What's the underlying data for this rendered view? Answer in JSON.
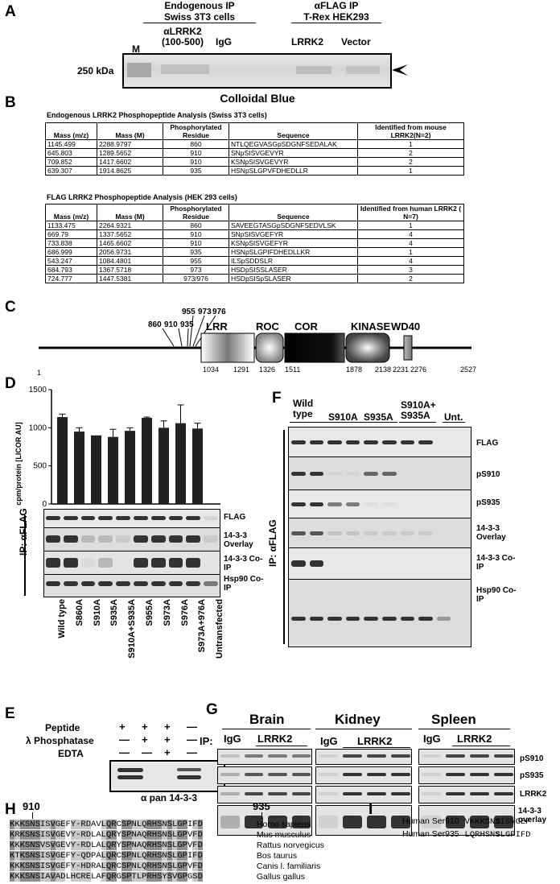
{
  "panel_a": {
    "letter": "A",
    "group1_title_1": "Endogenous IP",
    "group1_title_2": "Swiss 3T3 cells",
    "group2_title_1": "αFLAG IP",
    "group2_title_2": "T-Rex HEK293",
    "lane_m": "M",
    "lane_alrrk2_1": "αLRRK2",
    "lane_alrrk2_2": "(100-500)",
    "lane_igg": "IgG",
    "lane_lrrk2": "LRRK2",
    "lane_vector": "Vector",
    "marker": "250 kDa",
    "caption": "Colloidal Blue"
  },
  "panel_b": {
    "letter": "B",
    "table1_title": "Endogenous LRRK2 Phosphopeptide Analysis (Swiss 3T3 cells)",
    "table1_headers": [
      "Mass (m/z)",
      "Mass (M)",
      "Phosphorylated Residue",
      "Sequence",
      "Identified from mouse LRRK2(N=2)"
    ],
    "table1_rows": [
      [
        "1145.499",
        "2288.9797",
        "860",
        "NTLQEGVASGpSDGNFSEDALAK",
        "1"
      ],
      [
        "645.803",
        "1289.5652",
        "910",
        "SNpSISVGEVYR",
        "2"
      ],
      [
        "709.852",
        "1417.6602",
        "910",
        "KSNpSISVGEVYR",
        "2"
      ],
      [
        "639.307",
        "1914.8625",
        "935",
        "HSNpSLGPVFDHEDLLR",
        "1"
      ]
    ],
    "table2_title": "FLAG LRRK2 Phosphopeptide Analysis (HEK 293 cells)",
    "table2_headers": [
      "Mass (m/z)",
      "Mass (M)",
      "Phosphorylated Residue",
      "Sequence",
      "Identified from human LRRK2 ( N=7)"
    ],
    "table2_rows": [
      [
        "1133.475",
        "2264.9321",
        "860",
        "SAVEEGTASGpSDGNFSEDVLSK",
        "1"
      ],
      [
        "669.79",
        "1337.5652",
        "910",
        "SNpSISVGEFYR",
        "4"
      ],
      [
        "733.838",
        "1465.6602",
        "910",
        "KSNpSISVGEFYR",
        "4"
      ],
      [
        "686.999",
        "2056.9731",
        "935",
        "HSNpSLGPIFDHEDLLKR",
        "1"
      ],
      [
        "543.247",
        "1084.4801",
        "955",
        "ILSpSDDSLR",
        "4"
      ],
      [
        "684.793",
        "1367.5718",
        "973",
        "HSDpSISSLASER",
        "3"
      ],
      [
        "724.777",
        "1447.5381",
        "973/976",
        "HSDpSISpSLASER",
        "2"
      ]
    ]
  },
  "panel_c": {
    "letter": "C",
    "sites": [
      "860",
      "910",
      "935",
      "955",
      "973",
      "976"
    ],
    "domains": [
      "LRR",
      "ROC",
      "COR",
      "KINASE",
      "WD40"
    ],
    "positions": [
      "1",
      "1034",
      "1291",
      "1326",
      "1511",
      "1878",
      "2138",
      "2231",
      "2276",
      "2527"
    ]
  },
  "panel_d": {
    "letter": "D",
    "ylabel": "cpm/protein [LICOR AU]",
    "yticks": [
      "0",
      "500",
      "1000",
      "1500"
    ],
    "row_labels": [
      "FLAG",
      "14-3-3 Overlay",
      "14-3-3 Co-IP",
      "Hsp90 Co-IP"
    ],
    "ip_label": "IP: αFLAG",
    "lanes": [
      "Wild type",
      "S860A",
      "S910A",
      "S935A",
      "S910A+S935A",
      "S955A",
      "S973A",
      "S976A",
      "S973A+976A",
      "Untransfected"
    ]
  },
  "chart_data": {
    "type": "bar",
    "categories": [
      "Wild type",
      "S860A",
      "S910A",
      "S935A",
      "S910A+S935A",
      "S955A",
      "S973A",
      "S976A",
      "S973A+976A"
    ],
    "values": [
      1140,
      950,
      900,
      880,
      960,
      1130,
      1000,
      1060,
      990
    ],
    "errors": [
      40,
      50,
      0,
      100,
      40,
      10,
      90,
      240,
      70
    ],
    "ylabel": "cpm/protein [LICOR AU]",
    "ylim": [
      0,
      1500
    ],
    "yticks": [
      0,
      500,
      1000,
      1500
    ]
  },
  "panel_e": {
    "letter": "E",
    "rows": [
      "Peptide",
      "λ Phosphatase",
      "EDTA"
    ],
    "signs": [
      [
        "+",
        "+",
        "+",
        "—"
      ],
      [
        "—",
        "+",
        "+",
        "—"
      ],
      [
        "—",
        "—",
        "+",
        "—"
      ]
    ],
    "caption": "α pan 14-3-3"
  },
  "panel_f": {
    "letter": "F",
    "groups": [
      "Wild type",
      "S910A",
      "S935A",
      "S910A+ S935A",
      "Unt."
    ],
    "row_labels": [
      "FLAG",
      "pS910",
      "pS935",
      "14-3-3 Overlay",
      "14-3-3 Co-IP",
      "Hsp90 Co-IP"
    ],
    "ip_label": "IP: αFLAG"
  },
  "panel_g": {
    "letter": "G",
    "tissues": [
      "Brain",
      "Kidney",
      "Spleen"
    ],
    "ip_label": "IP:",
    "igg": "IgG",
    "lrrk2": "LRRK2",
    "row_labels": [
      "pS910",
      "pS935",
      "LRRK2",
      "14-3-3 overlay"
    ]
  },
  "panel_h": {
    "letter": "H",
    "pos1": "910",
    "pos2": "935",
    "species": [
      {
        "seq": "KKKSNSISVGEFY-RDAVLQRCSPNLQRHSNSLGPIFD",
        "name": "Homo sapiens"
      },
      {
        "seq": "KRKSNSISVGEVY-RDLALQRYSPNAQRHSNSLGPVFD",
        "name": "Mus musculus"
      },
      {
        "seq": "KKKSNSVSVGEVY-RDLALQRYSPNAQRHSNSLGPVFD",
        "name": "Rattus norvegicus"
      },
      {
        "seq": "KTKSNSISVGEFY-QDPALQRCSPNLQRHSNSLGPIFD",
        "name": "Bos taurus"
      },
      {
        "seq": "KKKSNSISVGEFY-HDRALQRCSPNLQRHSNSLGPVFD",
        "name": "Canis l. familiaris"
      },
      {
        "seq": "KKKSNSIAVADLHCRELAFQRGSPTLPRHSYSVGPGSD",
        "name": "Gallus gallus"
      }
    ]
  },
  "panel_i": {
    "letter": "I",
    "row1_label": "Human Ser910",
    "row1_pre": "VKKKSN",
    "row1_s": "S",
    "row1_post": "ISVGEF",
    "row2_label": "Human Ser935",
    "row2_pre": "LQRHSN",
    "row2_s": "S",
    "row2_post": "LGPIFD"
  }
}
